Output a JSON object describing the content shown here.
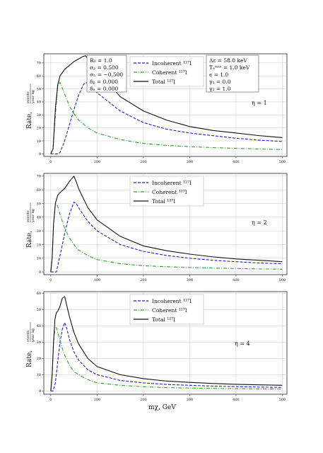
{
  "figure": {
    "xlabel": "mχ, GeV",
    "ylabel": "Rate,",
    "ylabel_fraction": {
      "numerator": "events",
      "denominator": "year kg"
    }
  },
  "colors": {
    "incoherent": "#1f1fd6",
    "coherent": "#2ca02c",
    "total": "#111111",
    "grid": "#c8c8c8"
  },
  "legend": {
    "incoherent": "Incoherent ¹²⁷I",
    "coherent": "Coherent ¹²⁷I",
    "total": "Total ¹²⁷I"
  },
  "params_left": [
    "R₀ = 1.0",
    "σₚ = 0.500",
    "σₙ = −0.500",
    "δₚ = 0.000",
    "δₙ = 0.000"
  ],
  "params_right": [
    "Δε = 58.0 keV",
    "Tₑᵐᶦⁿ = 1.0 keV",
    "ϵ = 1.0",
    "γ₁ = 0.0",
    "γ₂ = 1.0"
  ],
  "chart_data": [
    {
      "type": "line",
      "annotation": "η = 1",
      "xlim": [
        -15,
        510
      ],
      "ylim": [
        -2,
        77
      ],
      "xticks": [
        0,
        100,
        200,
        300,
        400,
        500
      ],
      "yticks": [
        0,
        10,
        20,
        30,
        40,
        50,
        60,
        70
      ],
      "series": [
        {
          "name": "Incoherent ¹²⁷I",
          "style": "dashed",
          "x": [
            0,
            10,
            15,
            20,
            30,
            40,
            50,
            60,
            70,
            75,
            80,
            100,
            150,
            200,
            250,
            300,
            350,
            400,
            450,
            500
          ],
          "y": [
            0,
            0,
            0,
            1,
            10,
            22,
            34,
            45,
            53,
            55,
            54,
            47,
            33,
            24,
            19,
            16,
            14,
            12,
            10.5,
            9.5
          ]
        },
        {
          "name": "Coherent ¹²⁷I",
          "style": "dashdot",
          "x": [
            0,
            5,
            10,
            15,
            20,
            30,
            40,
            50,
            60,
            80,
            100,
            150,
            200,
            250,
            300,
            350,
            400,
            450,
            500
          ],
          "y": [
            0,
            4,
            30,
            52,
            55,
            46,
            37,
            31,
            26,
            20,
            16,
            11,
            8,
            6.5,
            5.5,
            4.8,
            4.2,
            3.7,
            3.3
          ]
        },
        {
          "name": "Total ¹²⁷I",
          "style": "solid",
          "x": [
            0,
            5,
            10,
            15,
            20,
            30,
            40,
            50,
            60,
            70,
            75,
            80,
            100,
            150,
            200,
            250,
            300,
            350,
            400,
            450,
            500
          ],
          "y": [
            0,
            4,
            35,
            53,
            60,
            65,
            68,
            71,
            73,
            75,
            75.5,
            73,
            64,
            44,
            33,
            26,
            21,
            18,
            16,
            14,
            12.5
          ]
        }
      ]
    },
    {
      "type": "line",
      "annotation": "η = 2",
      "xlim": [
        -15,
        510
      ],
      "ylim": [
        -2,
        72
      ],
      "xticks": [
        0,
        100,
        200,
        300,
        400,
        500
      ],
      "yticks": [
        0,
        10,
        20,
        30,
        40,
        50,
        60,
        70
      ],
      "series": [
        {
          "name": "Incoherent ¹²⁷I",
          "style": "dashed",
          "x": [
            0,
            8,
            12,
            20,
            30,
            40,
            50,
            55,
            60,
            80,
            100,
            150,
            200,
            250,
            300,
            350,
            400,
            450,
            500
          ],
          "y": [
            0,
            0,
            0,
            12,
            28,
            42,
            51,
            50,
            47,
            37,
            30,
            20,
            15,
            12,
            10,
            8.5,
            7.5,
            6.5,
            6
          ]
        },
        {
          "name": "Coherent ¹²⁷I",
          "style": "dashdot",
          "x": [
            0,
            3,
            6,
            10,
            15,
            20,
            30,
            40,
            50,
            60,
            80,
            100,
            150,
            200,
            250,
            300,
            350,
            400,
            450,
            500
          ],
          "y": [
            0,
            10,
            35,
            50,
            48,
            42,
            32,
            25,
            20,
            16,
            12,
            9,
            6,
            4.5,
            3.8,
            3.2,
            2.8,
            2.5,
            2.2,
            2
          ]
        },
        {
          "name": "Total ¹²⁷I",
          "style": "solid",
          "x": [
            0,
            3,
            6,
            10,
            15,
            20,
            30,
            40,
            50,
            55,
            60,
            80,
            100,
            150,
            200,
            250,
            300,
            350,
            400,
            450,
            500
          ],
          "y": [
            0,
            10,
            35,
            50,
            56,
            58,
            61,
            66,
            70,
            66,
            61,
            47,
            38,
            26,
            19,
            15.5,
            13,
            11,
            9.5,
            8.5,
            7.5
          ]
        }
      ]
    },
    {
      "type": "line",
      "annotation": "η = 4",
      "xlim": [
        -15,
        510
      ],
      "ylim": [
        -2,
        61
      ],
      "xticks": [
        0,
        100,
        200,
        300,
        400,
        500
      ],
      "yticks": [
        0,
        10,
        20,
        30,
        40,
        50,
        60
      ],
      "series": [
        {
          "name": "Incoherent ¹²⁷I",
          "style": "dashed",
          "x": [
            0,
            5,
            10,
            15,
            20,
            25,
            30,
            35,
            40,
            50,
            60,
            80,
            100,
            150,
            200,
            250,
            300,
            350,
            400,
            450,
            500
          ],
          "y": [
            0,
            0,
            5,
            18,
            30,
            38,
            42,
            38,
            32,
            24,
            19,
            13,
            10,
            6.5,
            5,
            4,
            3.5,
            3,
            2.7,
            2.4,
            2.2
          ]
        },
        {
          "name": "Coherent ¹²⁷I",
          "style": "dashdot",
          "x": [
            0,
            3,
            6,
            9,
            12,
            15,
            20,
            25,
            30,
            40,
            50,
            60,
            80,
            100,
            150,
            200,
            250,
            300,
            350,
            400,
            450,
            500
          ],
          "y": [
            0,
            10,
            30,
            38,
            39,
            36,
            31,
            26,
            22,
            16,
            12,
            10,
            7,
            5,
            3.5,
            2.6,
            2.1,
            1.8,
            1.6,
            1.4,
            1.3,
            1.2
          ]
        },
        {
          "name": "Total ¹²⁷I",
          "style": "solid",
          "x": [
            0,
            3,
            6,
            9,
            12,
            15,
            20,
            25,
            30,
            35,
            40,
            50,
            60,
            80,
            100,
            150,
            200,
            250,
            300,
            350,
            400,
            450,
            500
          ],
          "y": [
            0,
            10,
            30,
            44,
            48,
            49,
            52,
            57,
            58,
            52,
            46,
            36,
            29,
            20,
            15,
            10,
            7.6,
            6.1,
            5.3,
            4.6,
            4.1,
            3.8,
            3.5
          ]
        }
      ]
    }
  ]
}
